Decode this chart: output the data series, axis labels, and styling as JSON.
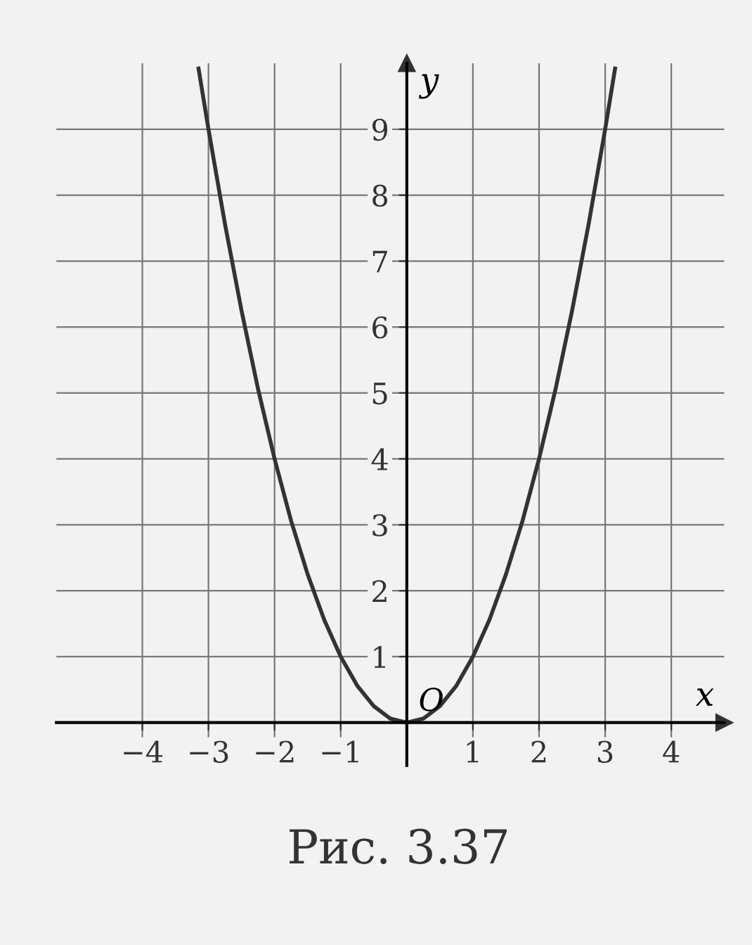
{
  "chart_data": {
    "type": "line",
    "xlabel": "x",
    "ylabel": "y",
    "x": [
      -3.15,
      -3,
      -2.75,
      -2.5,
      -2.25,
      -2,
      -1.75,
      -1.5,
      -1.25,
      -1,
      -0.75,
      -0.5,
      -0.25,
      0,
      0.25,
      0.5,
      0.75,
      1,
      1.25,
      1.5,
      1.75,
      2,
      2.25,
      2.5,
      2.75,
      3,
      3.15
    ],
    "series": [
      {
        "color": "#333333",
        "values": [
          9.92,
          9,
          7.56,
          6.25,
          5.06,
          4,
          3.06,
          2.25,
          1.56,
          1,
          0.56,
          0.25,
          0.06,
          0,
          0.06,
          0.25,
          0.56,
          1,
          1.56,
          2.25,
          3.06,
          4,
          5.06,
          6.25,
          7.56,
          9,
          9.92
        ]
      }
    ],
    "xlim": [
      -5.3,
      4.8
    ],
    "ylim": [
      -0.65,
      10
    ],
    "xticks": [
      {
        "value": -4,
        "label": "−4"
      },
      {
        "value": -3,
        "label": "−3"
      },
      {
        "value": -2,
        "label": "−2"
      },
      {
        "value": -1,
        "label": "−1"
      },
      1,
      2,
      3,
      4
    ],
    "yticks": [
      1,
      2,
      3,
      4,
      5,
      6,
      7,
      8,
      9
    ],
    "grid": true,
    "marker": "none",
    "line_style": "solid",
    "annotations": [
      {
        "text": "O",
        "x": 0,
        "y": 0
      },
      "Рис. 3.37"
    ]
  }
}
